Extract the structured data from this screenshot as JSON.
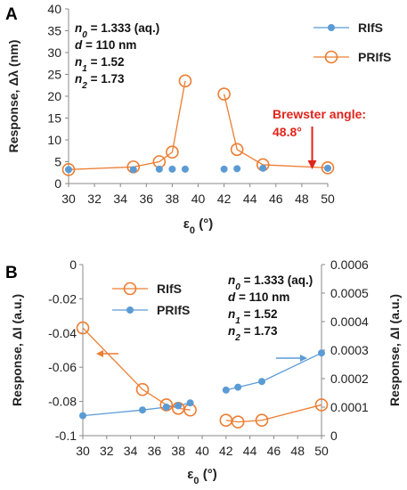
{
  "chart_data": [
    {
      "panel": "A",
      "type": "scatter",
      "xlabel": "ε₀ (°)",
      "ylabel": "Response, Δλ (nm)",
      "xlim": [
        30,
        50
      ],
      "ylim": [
        0,
        40
      ],
      "xticks": [
        30,
        32,
        34,
        36,
        38,
        40,
        42,
        44,
        46,
        48,
        50
      ],
      "yticks": [
        0,
        5,
        10,
        15,
        20,
        25,
        30,
        35,
        40
      ],
      "grid": false,
      "legend": "top-right",
      "series": [
        {
          "name": "RIfS",
          "style": "filled-dots",
          "color": "#5b9bd5",
          "x": [
            30,
            35,
            37,
            38,
            39,
            42,
            43,
            45,
            50
          ],
          "y": [
            3.2,
            3.2,
            3.3,
            3.3,
            3.3,
            3.3,
            3.4,
            3.5,
            3.5
          ]
        },
        {
          "name": "PRIfS",
          "style": "open-circles-line",
          "color": "#ed7d31",
          "segments": [
            {
              "x": [
                30,
                35,
                37,
                38,
                39
              ],
              "y": [
                3.2,
                3.8,
                5.0,
                7.2,
                23.5
              ]
            },
            {
              "x": [
                42,
                43,
                45,
                50
              ],
              "y": [
                20.5,
                7.8,
                4.3,
                3.6
              ]
            }
          ]
        }
      ],
      "params": [
        {
          "sym": "n",
          "sub": "0",
          "val": "= 1.333 (aq.)"
        },
        {
          "sym": "d",
          "sub": "",
          "val": "= 110 nm"
        },
        {
          "sym": "n",
          "sub": "1",
          "val": "= 1.52"
        },
        {
          "sym": "n",
          "sub": "2",
          "val": "= 1.73"
        }
      ],
      "annotation": {
        "line1": "Brewster angle:",
        "line2": "48.8°",
        "x": 48.8,
        "color": "#e0241b"
      }
    },
    {
      "panel": "B",
      "type": "scatter",
      "xlabel": "ε₀ (°)",
      "ylabel": "Response, ΔI (a.u.)",
      "ylabel_right": "Response, ΔI (a.u.)",
      "xlim": [
        30,
        50
      ],
      "ylim": [
        -0.1,
        0
      ],
      "ylim_right": [
        0,
        0.0006
      ],
      "xticks": [
        30,
        32,
        34,
        36,
        38,
        40,
        42,
        44,
        46,
        48,
        50
      ],
      "yticks": [
        "0",
        "-0.02",
        "-0.04",
        "-0.06",
        "-0.08",
        "-0.1"
      ],
      "yticks_right": [
        "0.0006",
        "0.0005",
        "0.0004",
        "0.0003",
        "0.0002",
        "0.0001",
        "0"
      ],
      "grid": false,
      "legend": "top-left",
      "series": [
        {
          "name": "RIfS",
          "style": "open-circles-line",
          "axis": "left",
          "color": "#ed7d31",
          "segments": [
            {
              "x": [
                30,
                35,
                37,
                38,
                39
              ],
              "y": [
                -0.037,
                -0.073,
                -0.082,
                -0.084,
                -0.085
              ]
            },
            {
              "x": [
                42,
                43,
                45,
                50
              ],
              "y": [
                -0.091,
                -0.092,
                -0.091,
                -0.082
              ]
            }
          ]
        },
        {
          "name": "PRIfS",
          "style": "filled-dots-line",
          "axis": "right",
          "color": "#5b9bd5",
          "segments": [
            {
              "x": [
                30,
                35,
                37,
                38,
                39
              ],
              "y": [
                7e-05,
                9e-05,
                0.0001,
                0.000105,
                0.000115
              ]
            },
            {
              "x": [
                42,
                43,
                45,
                50
              ],
              "y": [
                0.00016,
                0.00017,
                0.00019,
                0.00029
              ]
            }
          ]
        }
      ],
      "params": [
        {
          "sym": "n",
          "sub": "0",
          "val": "= 1.333 (aq.)"
        },
        {
          "sym": "d",
          "sub": "",
          "val": "= 110 nm"
        },
        {
          "sym": "n",
          "sub": "1",
          "val": "= 1.52"
        },
        {
          "sym": "n",
          "sub": "2",
          "val": "= 1.73"
        }
      ]
    }
  ]
}
